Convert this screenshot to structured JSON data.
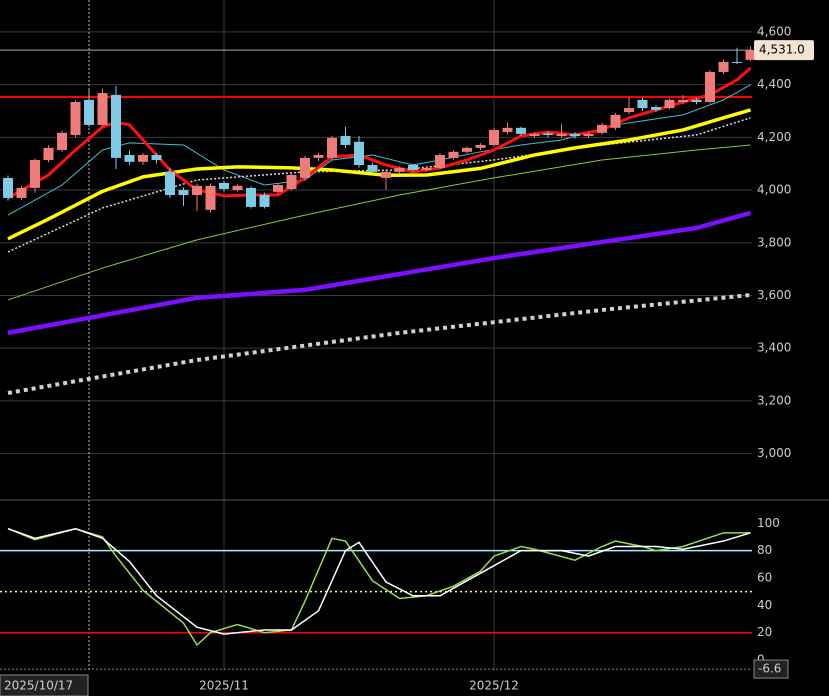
{
  "chart_data": [
    {
      "type": "candlestick",
      "categories": [
        null,
        null,
        null,
        null,
        null,
        null,
        "2025/10/17",
        null,
        null,
        null,
        null,
        null,
        null,
        null,
        null,
        null,
        "2025/11",
        null,
        null,
        null,
        null,
        null,
        null,
        null,
        null,
        null,
        null,
        null,
        null,
        null,
        null,
        null,
        null,
        null,
        null,
        null,
        "2025/12",
        null,
        null,
        null,
        null,
        null,
        null,
        null,
        null,
        null,
        null,
        null,
        null,
        null,
        null,
        null,
        null,
        null,
        null,
        null
      ],
      "open": [
        4046,
        3970,
        4008,
        4114,
        4152,
        4209,
        4342,
        4247,
        4361,
        4133,
        4107,
        4133,
        4069,
        4000,
        3981,
        3925,
        4027,
        4000,
        4008,
        3981,
        3993,
        4004,
        4046,
        4122,
        4122,
        4205,
        4183,
        4095,
        4046,
        4069,
        4095,
        4076,
        4084,
        4122,
        4145,
        4160,
        4171,
        4220,
        4236,
        4205,
        4215,
        4205,
        4213,
        4205,
        4217,
        4236,
        4296,
        4342,
        4315,
        4311,
        4334,
        4342,
        4334,
        4448,
        4486,
        4494
      ],
      "high": [
        4055,
        4015,
        4120,
        4170,
        4225,
        4340,
        4380,
        4385,
        4395,
        4150,
        4140,
        4140,
        4085,
        4010,
        4025,
        4025,
        4035,
        4022,
        4015,
        3990,
        4025,
        4065,
        4130,
        4140,
        4205,
        4240,
        4205,
        4105,
        4075,
        4090,
        4100,
        4090,
        4140,
        4150,
        4165,
        4178,
        4235,
        4255,
        4240,
        4220,
        4222,
        4250,
        4220,
        4222,
        4255,
        4292,
        4350,
        4350,
        4322,
        4348,
        4360,
        4350,
        4455,
        4495,
        4540,
        4545
      ],
      "low": [
        3960,
        3962,
        3990,
        4105,
        4145,
        4200,
        4240,
        4240,
        4080,
        4095,
        4095,
        4100,
        3970,
        3940,
        3920,
        3915,
        3995,
        3995,
        3930,
        3930,
        3985,
        3998,
        4040,
        4110,
        4115,
        4160,
        4085,
        4060,
        4000,
        4060,
        4070,
        4070,
        4078,
        4115,
        4138,
        4152,
        4165,
        4212,
        4205,
        4198,
        4200,
        4198,
        4195,
        4198,
        4210,
        4228,
        4288,
        4300,
        4296,
        4305,
        4325,
        4325,
        4328,
        4440,
        4478,
        4488
      ],
      "close": [
        3970,
        4008,
        4114,
        4160,
        4217,
        4334,
        4247,
        4368,
        4122,
        4107,
        4133,
        4114,
        3981,
        3981,
        4016,
        4016,
        4004,
        4016,
        3936,
        3936,
        4019,
        4057,
        4122,
        4133,
        4198,
        4171,
        4095,
        4069,
        4069,
        4084,
        4076,
        4084,
        4133,
        4145,
        4160,
        4171,
        4228,
        4236,
        4213,
        4213,
        4209,
        4213,
        4205,
        4213,
        4247,
        4285,
        4311,
        4311,
        4304,
        4342,
        4342,
        4334,
        4448,
        4486,
        4482,
        4531
      ],
      "up_color": "#f07b7b",
      "down_color": "#7fcbe6",
      "lines": [
        {
          "color": "#d0d0d0",
          "width": 4,
          "dash": "4 4",
          "x": [
            0,
            14,
            29,
            44,
            55
          ],
          "values": [
            3230,
            3355,
            3458,
            3545,
            3602
          ]
        },
        {
          "color": "#7a10ff",
          "width": 4.5,
          "x": [
            0,
            14,
            22,
            36,
            51,
            55
          ],
          "values": [
            3458,
            3591,
            3621,
            3742,
            3856,
            3913
          ]
        },
        {
          "color": "#88cc33",
          "width": 1,
          "x": [
            0,
            7,
            14,
            22,
            29,
            36,
            44,
            51,
            55
          ],
          "values": [
            3583,
            3704,
            3811,
            3905,
            3981,
            4046,
            4114,
            4152,
            4171
          ]
        },
        {
          "color": "#dddddd",
          "width": 1.5,
          "dash": "2 2",
          "x": [
            0,
            7,
            14,
            22,
            29,
            36,
            44,
            51,
            55
          ],
          "values": [
            3765,
            3932,
            4038,
            4069,
            4076,
            4114,
            4171,
            4209,
            4274
          ]
        },
        {
          "color": "#40c0d0",
          "width": 1,
          "x": [
            0,
            4,
            7,
            9,
            13,
            16,
            19,
            22,
            24,
            27,
            30,
            32,
            35,
            38,
            41,
            45,
            50,
            53,
            55
          ],
          "values": [
            3905,
            4019,
            4152,
            4179,
            4171,
            4076,
            4019,
            4038,
            4114,
            4133,
            4095,
            4114,
            4145,
            4171,
            4190,
            4247,
            4285,
            4342,
            4399
          ]
        },
        {
          "color": "#ffff00",
          "width": 3.5,
          "x": [
            0,
            3,
            7,
            10,
            14,
            17,
            21,
            24,
            28,
            31,
            35,
            39,
            42,
            46,
            50,
            53,
            55
          ],
          "values": [
            3815,
            3890,
            3995,
            4050,
            4080,
            4088,
            4084,
            4076,
            4056,
            4057,
            4082,
            4133,
            4160,
            4190,
            4228,
            4274,
            4304
          ]
        },
        {
          "color": "#ff1010",
          "width": 3,
          "x": [
            0,
            3,
            5,
            7,
            8,
            9,
            10,
            12,
            14,
            16,
            18,
            20,
            22,
            24,
            26,
            28,
            30,
            32,
            34,
            36,
            38,
            40,
            42,
            44,
            46,
            48,
            50,
            52,
            54,
            55
          ],
          "values": [
            3970,
            4057,
            4152,
            4239,
            4258,
            4247,
            4190,
            4076,
            4000,
            3978,
            3981,
            3981,
            4046,
            4126,
            4133,
            4095,
            4069,
            4084,
            4114,
            4152,
            4205,
            4220,
            4209,
            4228,
            4274,
            4304,
            4334,
            4361,
            4418,
            4463
          ]
        }
      ],
      "hline": {
        "value": 4353,
        "color": "#ff0000"
      },
      "last_price": 4531.0,
      "last_price_label": "4,531.0",
      "ylim": [
        2824,
        4721
      ],
      "yticks": [
        {
          "value": 3000,
          "label": "3,000"
        },
        {
          "value": 3200,
          "label": "3,200"
        },
        {
          "value": 3400,
          "label": "3,400"
        },
        {
          "value": 3600,
          "label": "3,600"
        },
        {
          "value": 3800,
          "label": "3,800"
        },
        {
          "value": 4000,
          "label": "4,000"
        },
        {
          "value": 4200,
          "label": "4,200"
        },
        {
          "value": 4400,
          "label": "4,400"
        },
        {
          "value": 4600,
          "label": "4,600"
        }
      ],
      "grid": true
    },
    {
      "type": "line",
      "series": [
        {
          "color": "#99dd44",
          "x": [
            0,
            2,
            5,
            7,
            8,
            10,
            13,
            14,
            15,
            17,
            19,
            21,
            22,
            24,
            25,
            27,
            29,
            31,
            33,
            35,
            36,
            38,
            39,
            42,
            44,
            45,
            47,
            48,
            50,
            53,
            55
          ],
          "values": [
            96,
            88,
            96,
            90,
            76,
            51,
            27,
            11,
            20,
            26,
            20,
            22,
            43,
            89,
            87,
            58,
            45,
            47,
            54,
            65,
            76,
            83,
            81,
            73,
            83,
            87,
            83,
            80,
            83,
            93,
            93
          ]
        },
        {
          "color": "#ffffff",
          "x": [
            0,
            2,
            5,
            7,
            9,
            11,
            14,
            16,
            19,
            21,
            23,
            25,
            26,
            28,
            30,
            32,
            34,
            36,
            38,
            41,
            43,
            45,
            48,
            50,
            53,
            55
          ],
          "values": [
            96,
            89,
            96,
            89,
            72,
            47,
            24,
            19,
            22,
            22,
            36,
            80,
            86,
            57,
            47,
            47,
            58,
            69,
            80,
            80,
            76,
            83,
            83,
            81,
            87,
            93
          ]
        }
      ],
      "hlines": [
        {
          "value": 80,
          "color": "#a0f0ff",
          "dash": ""
        },
        {
          "value": 50,
          "color": "#ffff66",
          "dash": "2 3"
        },
        {
          "value": 20,
          "color": "#ff0000",
          "dash": ""
        }
      ],
      "marker_value": -6.6,
      "ylim": [
        -8,
        117
      ],
      "yticks": [
        0,
        20,
        40,
        60,
        80,
        100
      ]
    }
  ]
}
